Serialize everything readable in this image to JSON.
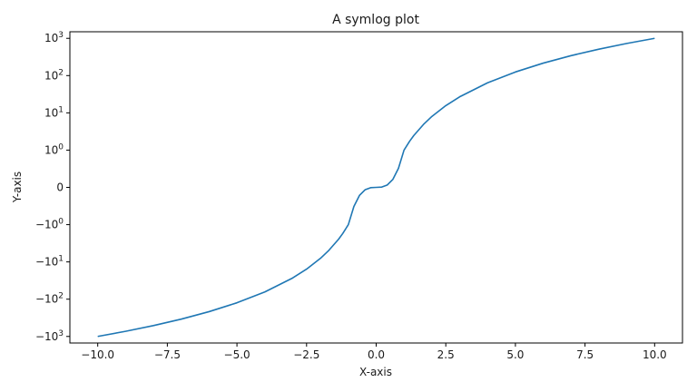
{
  "chart_data": {
    "type": "line",
    "title": "A symlog plot",
    "xlabel": "X-axis",
    "ylabel": "Y-axis",
    "xlim": [
      -11.0,
      11.0
    ],
    "ylim": [
      -1500,
      1500
    ],
    "yscale": "symlog",
    "linthresh": 1,
    "grid": false,
    "line_color": "#1f77b4",
    "x_ticks": [
      {
        "value": -10.0,
        "label": "−10.0"
      },
      {
        "value": -7.5,
        "label": "−7.5"
      },
      {
        "value": -5.0,
        "label": "−5.0"
      },
      {
        "value": -2.5,
        "label": "−2.5"
      },
      {
        "value": 0.0,
        "label": "0.0"
      },
      {
        "value": 2.5,
        "label": "2.5"
      },
      {
        "value": 5.0,
        "label": "5.0"
      },
      {
        "value": 7.5,
        "label": "7.5"
      },
      {
        "value": 10.0,
        "label": "10.0"
      }
    ],
    "y_ticks": [
      {
        "value": 1000,
        "base": "10",
        "exp": "3",
        "neg": false
      },
      {
        "value": 100,
        "base": "10",
        "exp": "2",
        "neg": false
      },
      {
        "value": 10,
        "base": "10",
        "exp": "1",
        "neg": false
      },
      {
        "value": 1,
        "base": "10",
        "exp": "0",
        "neg": false
      },
      {
        "value": 0,
        "base": "0",
        "exp": "",
        "neg": false
      },
      {
        "value": -1,
        "base": "10",
        "exp": "0",
        "neg": true
      },
      {
        "value": -10,
        "base": "10",
        "exp": "1",
        "neg": true
      },
      {
        "value": -100,
        "base": "10",
        "exp": "2",
        "neg": true
      },
      {
        "value": -1000,
        "base": "10",
        "exp": "3",
        "neg": true
      }
    ],
    "series": [
      {
        "x": [
          -10,
          -9,
          -8,
          -7,
          -6,
          -5,
          -4,
          -3,
          -2.5,
          -2,
          -1.7,
          -1.35,
          -1.2,
          -1.0,
          -0.8,
          -0.6,
          -0.4,
          -0.2,
          0,
          0.2,
          0.4,
          0.6,
          0.8,
          1.0,
          1.2,
          1.35,
          1.7,
          2,
          2.5,
          3,
          4,
          5,
          6,
          7,
          8,
          9,
          10
        ],
        "y": [
          -1000,
          -729,
          -512,
          -343,
          -216,
          -125,
          -64,
          -27,
          -15.6,
          -8,
          -4.9,
          -2.46,
          -1.728,
          -1,
          -0.512,
          -0.216,
          -0.064,
          -0.008,
          0,
          0.008,
          0.064,
          0.216,
          0.512,
          1,
          1.728,
          2.46,
          4.9,
          8,
          15.6,
          27,
          64,
          125,
          216,
          343,
          512,
          729,
          1000
        ]
      }
    ]
  }
}
